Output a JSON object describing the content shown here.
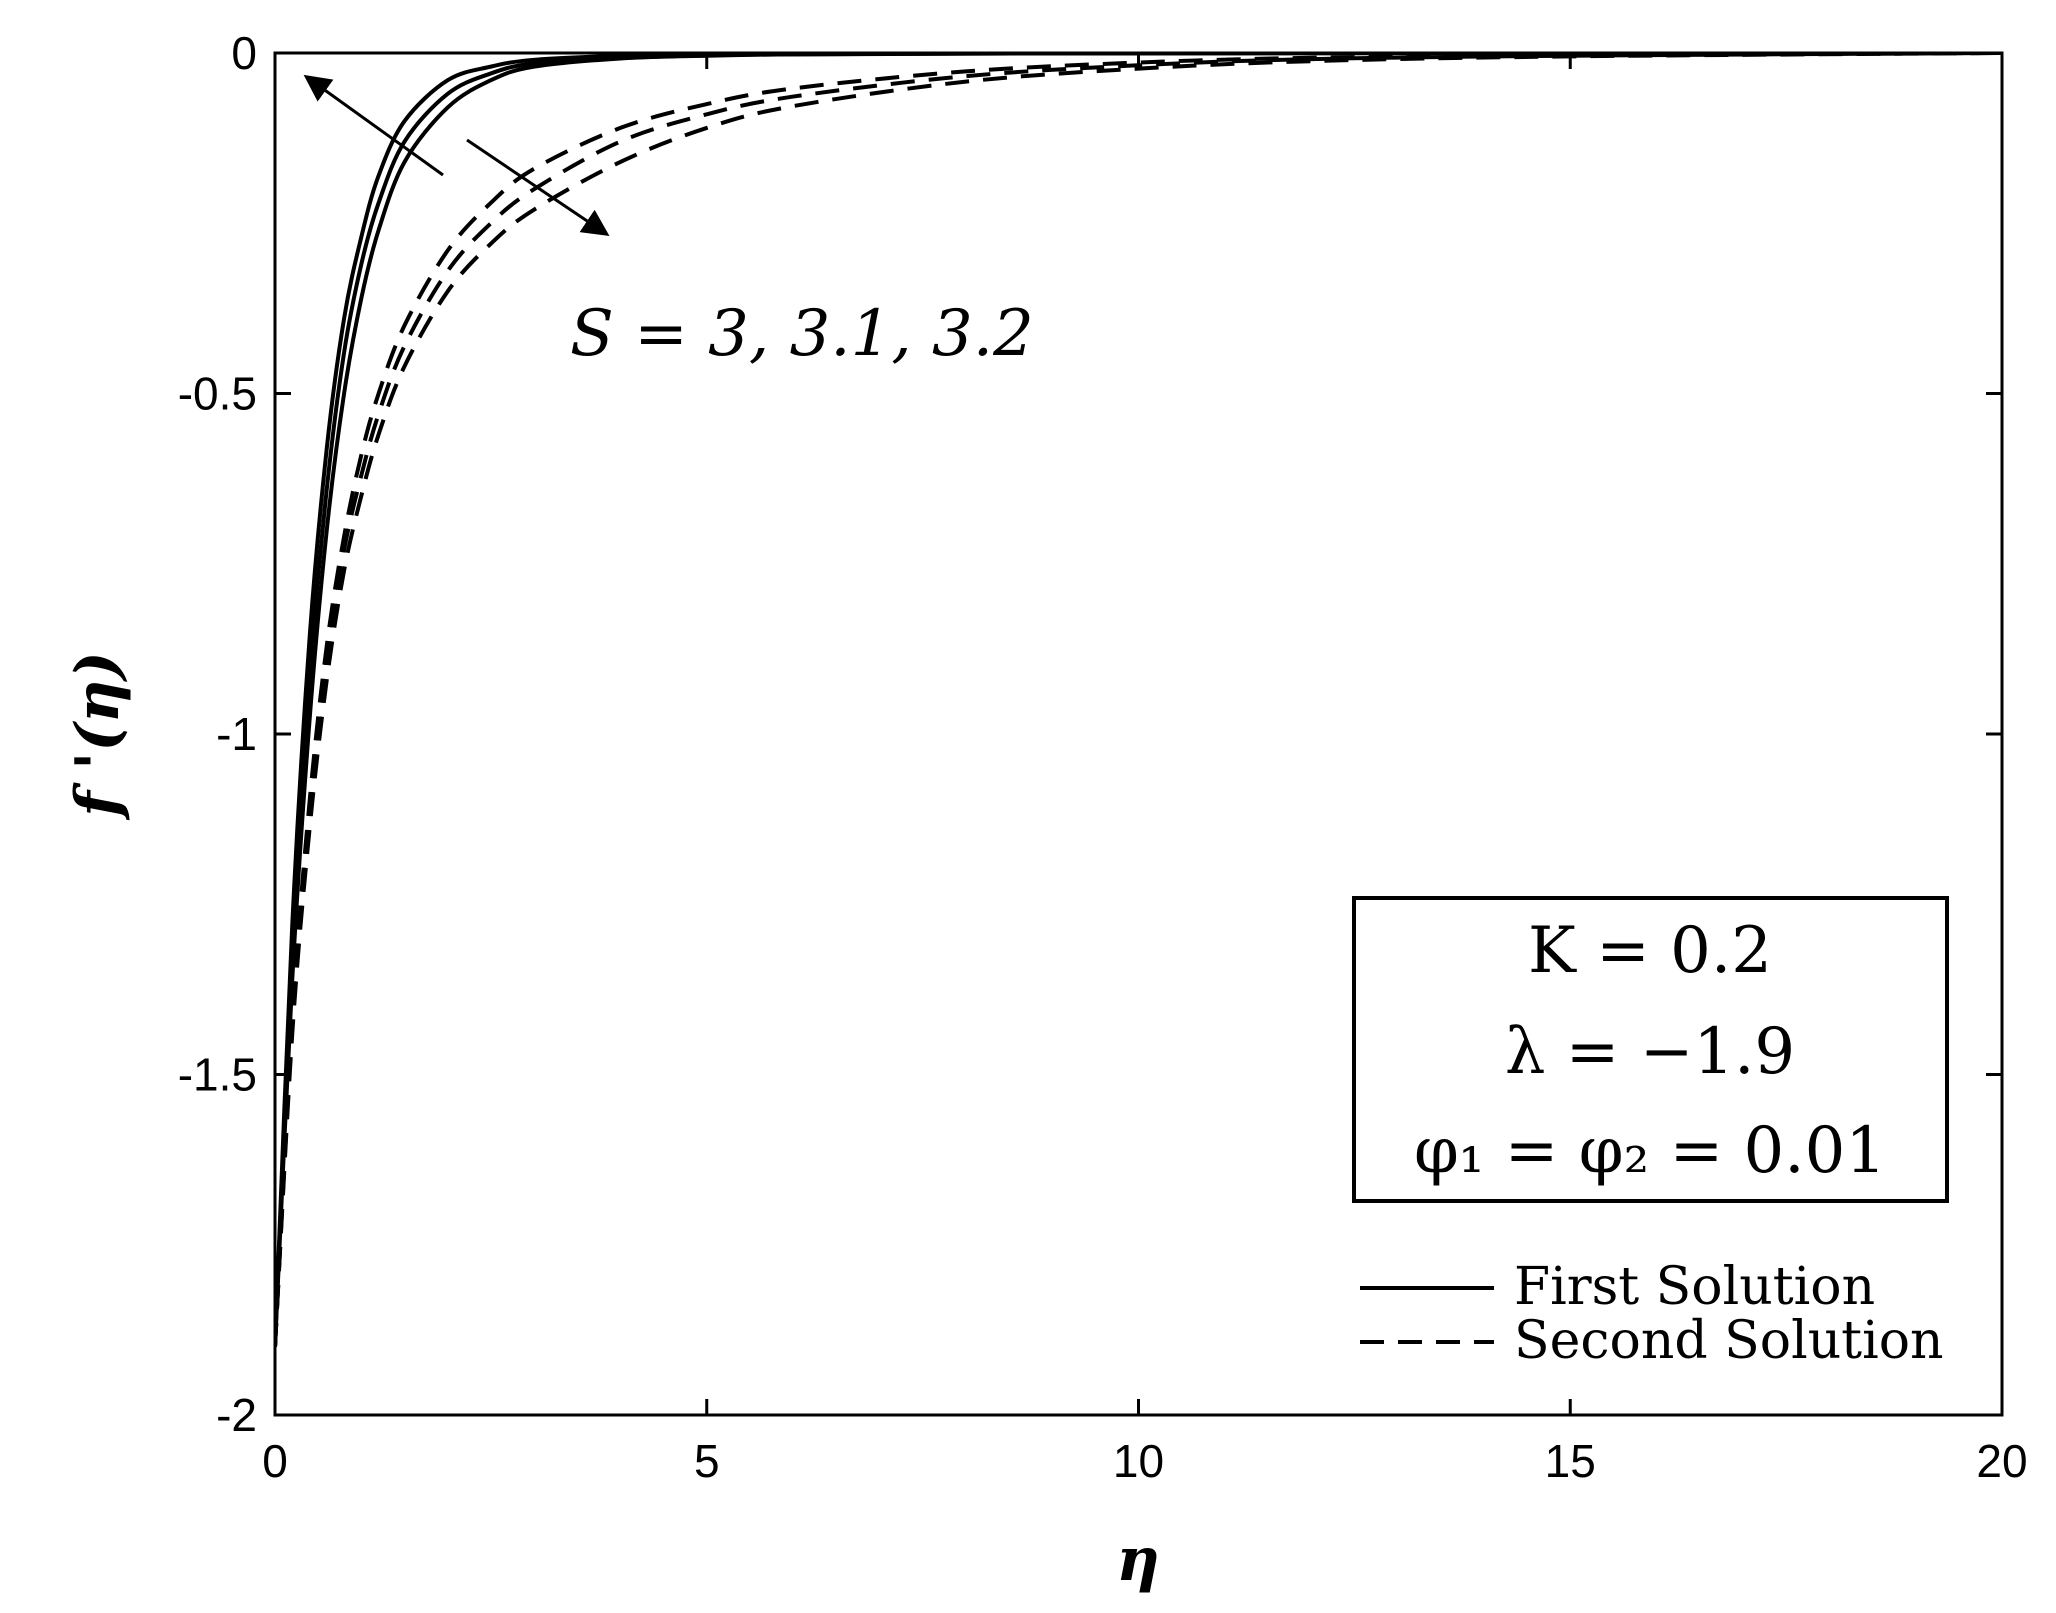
{
  "chart_data": {
    "type": "line",
    "title": "",
    "xlabel": "η",
    "ylabel": "f '(η)",
    "xlim": [
      0,
      20
    ],
    "ylim": [
      -2,
      0
    ],
    "xticks": [
      "0",
      "5",
      "10",
      "15",
      "20"
    ],
    "yticks": [
      "0",
      "-0.5",
      "-1",
      "-1.5",
      "-2"
    ],
    "grid": false,
    "legend": {
      "placement": "bottom-right",
      "entries": [
        {
          "label": "First Solution",
          "style": "solid"
        },
        {
          "label": "Second Solution",
          "style": "dashed"
        }
      ]
    },
    "annotation": "S = 3, 3.1, 3.2",
    "parameters": [
      "K = 0.2",
      "λ = −1.9",
      "φ₁ = φ₂ = 0.01"
    ],
    "series": [
      {
        "style": "solid",
        "x": [
          0,
          0.2,
          0.4,
          0.6,
          0.8,
          1.0,
          1.2,
          1.5,
          2.0,
          2.5,
          3.0,
          4.0,
          5.0,
          6.0,
          8.0,
          10.0,
          15.0,
          20.0
        ],
        "y": [
          -1.9,
          -1.28,
          -0.86,
          -0.58,
          -0.39,
          -0.27,
          -0.18,
          -0.1,
          -0.04,
          -0.02,
          -0.01,
          -0.004,
          -0.002,
          -0.001,
          -0.0005,
          -0.0002,
          0,
          0
        ]
      },
      {
        "style": "solid",
        "x": [
          0,
          0.2,
          0.4,
          0.6,
          0.8,
          1.0,
          1.2,
          1.5,
          2.0,
          2.5,
          3.0,
          4.0,
          5.0,
          6.0,
          8.0,
          10.0,
          15.0,
          20.0
        ],
        "y": [
          -1.9,
          -1.32,
          -0.92,
          -0.64,
          -0.44,
          -0.31,
          -0.22,
          -0.13,
          -0.06,
          -0.03,
          -0.015,
          -0.006,
          -0.003,
          -0.002,
          -0.001,
          -0.0005,
          0,
          0
        ]
      },
      {
        "style": "solid",
        "x": [
          0,
          0.2,
          0.4,
          0.6,
          0.8,
          1.0,
          1.2,
          1.5,
          2.0,
          2.5,
          3.0,
          4.0,
          5.0,
          6.0,
          8.0,
          10.0,
          15.0,
          20.0
        ],
        "y": [
          -1.9,
          -1.36,
          -0.98,
          -0.7,
          -0.5,
          -0.36,
          -0.26,
          -0.16,
          -0.08,
          -0.04,
          -0.02,
          -0.008,
          -0.004,
          -0.002,
          -0.001,
          -0.0005,
          0,
          0
        ]
      },
      {
        "style": "dashed",
        "x": [
          0,
          0.2,
          0.4,
          0.6,
          0.8,
          1.0,
          1.2,
          1.5,
          2.0,
          2.5,
          3.0,
          4.0,
          5.0,
          6.0,
          8.0,
          10.0,
          12.0,
          15.0,
          20.0
        ],
        "y": [
          -1.9,
          -1.42,
          -1.1,
          -0.87,
          -0.71,
          -0.59,
          -0.5,
          -0.4,
          -0.29,
          -0.22,
          -0.17,
          -0.11,
          -0.075,
          -0.052,
          -0.027,
          -0.014,
          -0.007,
          -0.003,
          0
        ]
      },
      {
        "style": "dashed",
        "x": [
          0,
          0.2,
          0.4,
          0.6,
          0.8,
          1.0,
          1.2,
          1.5,
          2.0,
          2.5,
          3.0,
          4.0,
          5.0,
          6.0,
          8.0,
          10.0,
          12.0,
          15.0,
          20.0
        ],
        "y": [
          -1.9,
          -1.43,
          -1.12,
          -0.89,
          -0.73,
          -0.62,
          -0.53,
          -0.43,
          -0.32,
          -0.25,
          -0.2,
          -0.13,
          -0.09,
          -0.064,
          -0.034,
          -0.018,
          -0.009,
          -0.004,
          0
        ]
      },
      {
        "style": "dashed",
        "x": [
          0,
          0.2,
          0.4,
          0.6,
          0.8,
          1.0,
          1.2,
          1.5,
          2.0,
          2.5,
          3.0,
          4.0,
          5.0,
          6.0,
          8.0,
          10.0,
          12.0,
          15.0,
          20.0
        ],
        "y": [
          -1.9,
          -1.44,
          -1.14,
          -0.92,
          -0.76,
          -0.65,
          -0.56,
          -0.46,
          -0.35,
          -0.28,
          -0.23,
          -0.16,
          -0.11,
          -0.078,
          -0.042,
          -0.023,
          -0.012,
          -0.005,
          0
        ]
      }
    ]
  }
}
